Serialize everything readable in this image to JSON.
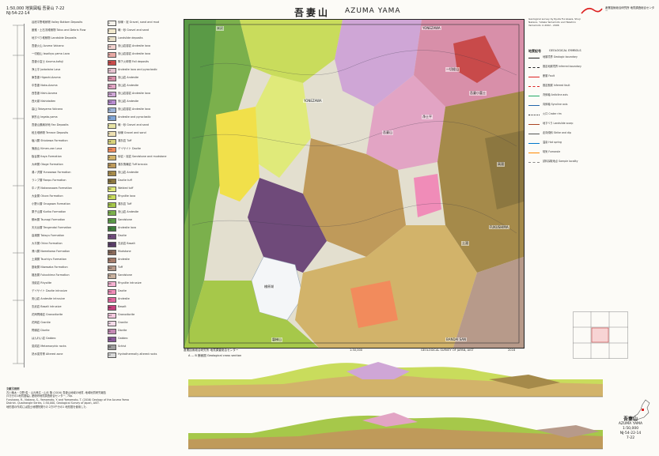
{
  "header": {
    "series_jp": "1:50,000 地質図幅 吾妻山 7-22",
    "sheet_code": "NJ-54-22-14",
    "title_jp": "吾妻山",
    "title_en": "AZUMA YAMA",
    "authors": "Geological survey by Ryuta Furukawa, Shuji Nakano, Yutaka Yamamoto and Takahiro Yamamoto in 2002 - 2006",
    "agency_logo_text": "産業技術総合研究所 地質調査総合センター"
  },
  "legend": {
    "rows": [
      {
        "name": "谷底平野堆積物 Valley Bottom Deposits",
        "color": "#f4f1ea",
        "code": "a",
        "desc": "砂礫・泥 Gravel, sand and mud"
      },
      {
        "name": "崖錐・土石流堆積物 Talus and Debris Flow",
        "color": "#f1e8cc",
        "code": "t",
        "desc": "礫・砂 Gravel and sand"
      },
      {
        "name": "地すべり堆積物 Landslide Deposits",
        "color": "#e8e0c8",
        "code": "ls",
        "desc": "Landslide deposits"
      },
      {
        "name": "吾妻火山 Azuma Volcano",
        "color": "#f3d3cf",
        "code": "Az",
        "desc": "安山岩溶岩 Andesite lava"
      },
      {
        "name": "一切経山 Issaikyo-yama Lava",
        "color": "#e8a9a4",
        "code": "Is",
        "desc": "安山岩溶岩 Andesite lava"
      },
      {
        "name": "吾妻小富士 Azuma-kofuji",
        "color": "#c84a4a",
        "code": "Ak",
        "desc": "降下火砕物 Fall deposits"
      },
      {
        "name": "浄土平 Jododaira Lava",
        "color": "#e6c2cf",
        "code": "Jd",
        "desc": "Andesite lava and pyroclastic"
      },
      {
        "name": "東吾妻 Higashi-Azuma",
        "color": "#d88fa9",
        "code": "Ha",
        "desc": "安山岩 Andesite"
      },
      {
        "name": "中吾妻 Naka-Azuma",
        "color": "#e2a4c4",
        "code": "Na",
        "desc": "安山岩 Andesite"
      },
      {
        "name": "西吾妻 Nishi-Azuma",
        "color": "#cfa6d6",
        "code": "Wa",
        "desc": "安山岩溶岩 Andesite lava"
      },
      {
        "name": "西大巓 Nishidaiten",
        "color": "#b88bd0",
        "code": "Nd",
        "desc": "安山岩 Andesite"
      },
      {
        "name": "高山 Takayama Volcano",
        "color": "#9fb6d8",
        "code": "Ty",
        "desc": "安山岩溶岩 Andesite lava"
      },
      {
        "name": "家形山 Iegata-yama",
        "color": "#7fa5d6",
        "code": "Ig",
        "desc": "Andesite and pyroclastic"
      },
      {
        "name": "吾妻山麓扇状地 Fan Deposits",
        "color": "#e7e3a5",
        "code": "f",
        "desc": "礫・砂 Gravel and sand"
      },
      {
        "name": "段丘堆積物 Terrace Deposits",
        "color": "#eee1b4",
        "code": "tr",
        "desc": "砂礫 Gravel and sand"
      },
      {
        "name": "塩川層 Shiokawa Formation",
        "color": "#d7d27a",
        "code": "Sk",
        "desc": "凝灰岩 Tuff"
      },
      {
        "name": "鬼面山 Kimen-zan Lava",
        "color": "#f28b5c",
        "code": "Km",
        "desc": "デイサイト Dacite"
      },
      {
        "name": "板谷層 Itaya Formation",
        "color": "#d2b36a",
        "code": "It",
        "desc": "砂岩・泥岩 Sandstone and mudstone"
      },
      {
        "name": "大峠層 Otoge Formation",
        "color": "#bf9a5a",
        "code": "Ot",
        "desc": "凝灰角礫岩 Tuff breccia"
      },
      {
        "name": "湯ノ沢層 Yunosawa Formation",
        "color": "#a58a4a",
        "code": "Yn",
        "desc": "安山岩 Andesite"
      },
      {
        "name": "ランプ層 Ranpu Formation",
        "color": "#8c7740",
        "code": "Rp",
        "desc": "Dacite tuff"
      },
      {
        "name": "中ノ沢 Nakanosawa Formation",
        "color": "#e0ea7a",
        "code": "Nk",
        "desc": "Welded tuff"
      },
      {
        "name": "大倉層 Okura Formation",
        "color": "#c9dc5c",
        "code": "Ok",
        "desc": "Rhyolite lava"
      },
      {
        "name": "小野川層 Onogawa Formation",
        "color": "#a6c84a",
        "code": "On",
        "desc": "凝灰岩 Tuff"
      },
      {
        "name": "栗子山層 Kuriko Formation",
        "color": "#7bb04c",
        "code": "Kr",
        "desc": "安山岩 Andesite"
      },
      {
        "name": "綱木層 Tsunagi Formation",
        "color": "#5a9a46",
        "code": "Tn",
        "desc": "Sandstone"
      },
      {
        "name": "天元台層 Tengendai Formation",
        "color": "#3f7f3c",
        "code": "Tg",
        "desc": "Andesite lava"
      },
      {
        "name": "高湯層 Takayu Formation",
        "color": "#6f4a7a",
        "code": "Tk",
        "desc": "Dacite"
      },
      {
        "name": "大平層 Ohira Formation",
        "color": "#5a3d68",
        "code": "Oh",
        "desc": "玄武岩 Basalt"
      },
      {
        "name": "滑川層 Namekawa Formation",
        "color": "#8a6a5a",
        "code": "Nm",
        "desc": "Mudstone"
      },
      {
        "name": "土湯層 Tsuchiyu Formation",
        "color": "#a67c6a",
        "code": "Ts",
        "desc": "Andesite"
      },
      {
        "name": "庭坂層 Niwasaka Formation",
        "color": "#b79a8a",
        "code": "Nw",
        "desc": "Tuff"
      },
      {
        "name": "福島層 Fukushima Formation",
        "color": "#c9b19e",
        "code": "Fk",
        "desc": "Sandstone"
      },
      {
        "name": "流紋岩 Rhyolite",
        "color": "#f6b2d2",
        "code": "Rh",
        "desc": "Rhyolite intrusive"
      },
      {
        "name": "デイサイト Dacite intrusive",
        "color": "#f08cb8",
        "code": "Da",
        "desc": "Dacite"
      },
      {
        "name": "安山岩 Andesite intrusive",
        "color": "#e3679f",
        "code": "An",
        "desc": "Andesite"
      },
      {
        "name": "玄武岩 Basalt intrusive",
        "color": "#c6407d",
        "code": "Ba",
        "desc": "Basalt"
      },
      {
        "name": "花崗閃緑岩 Granodiorite",
        "color": "#f7c9e0",
        "code": "Gd",
        "desc": "Granodiorite"
      },
      {
        "name": "花崗岩 Granite",
        "color": "#f4dbe9",
        "code": "Gr",
        "desc": "Granite"
      },
      {
        "name": "閃緑岩 Diorite",
        "color": "#c58ab5",
        "code": "Di",
        "desc": "Diorite"
      },
      {
        "name": "はんれい岩 Gabbro",
        "color": "#8a5a9a",
        "code": "Gb",
        "desc": "Gabbro"
      },
      {
        "name": "変成岩 Metamorphic rocks",
        "color": "#9c9c9c",
        "code": "Mt",
        "desc": "Schist"
      },
      {
        "name": "熱水変質帯 Altered zone",
        "color": "#d8d8d8",
        "code": "Al",
        "desc": "Hydrothermally altered rocks"
      }
    ]
  },
  "map": {
    "north_label_left": "米沢",
    "north_label_right": "YONEZAWA",
    "south_label_left": "磐梯山",
    "south_label_right": "BANDAI SAN",
    "places": [
      "YONEZAWA",
      "吾妻山",
      "一切経山",
      "吾妻小富士",
      "浄土平",
      "土湯",
      "FUKUSHIMA",
      "檜原湖",
      "高湯"
    ]
  },
  "symbols": {
    "heading_jp": "地質記号",
    "heading_en": "GEOLOGICAL SYMBOLS",
    "rows": [
      {
        "color": "#222",
        "style": "solid",
        "label": "地層境界 Geologic boundary"
      },
      {
        "color": "#222",
        "style": "dashed",
        "label": "推定地層境界 Inferred boundary"
      },
      {
        "color": "#d22",
        "style": "solid",
        "label": "断層 Fault"
      },
      {
        "color": "#d22",
        "style": "dashed",
        "label": "推定断層 Inferred fault"
      },
      {
        "color": "#2a6",
        "style": "solid",
        "label": "背斜軸 Anticline axis"
      },
      {
        "color": "#26a",
        "style": "solid",
        "label": "向斜軸 Syncline axis"
      },
      {
        "color": "#222",
        "style": "dotted",
        "label": "火口 Crater rim"
      },
      {
        "color": "#a42",
        "style": "solid",
        "label": "地すべり Landslide scarp"
      },
      {
        "color": "#555",
        "style": "solid",
        "label": "走向傾斜 Strike and dip"
      },
      {
        "color": "#07c",
        "style": "solid",
        "label": "温泉 Hot spring"
      },
      {
        "color": "#f80",
        "style": "solid",
        "label": "噴気 Fumarole"
      },
      {
        "color": "#888",
        "style": "dashed",
        "label": "試料採取地点 Sample locality"
      }
    ]
  },
  "footer": {
    "scale": "1:50,000",
    "org_jp": "産業技術総合研究所 地質調査総合センター",
    "org_en": "GEOLOGICAL SURVEY OF JAPAN, AIST",
    "year": "2016",
    "sheet_title_jp": "吾妻山",
    "sheet_title_en": "AZUMA YAMA",
    "sheet_no": "NJ-54-22-14",
    "sheet_no2": "7-22",
    "section_label": "A — B 断面図 Geological cross section"
  },
  "notes": {
    "heading": "文献引用例",
    "lines": [
      "古川竜太・中野 俊・山元孝広・山元 隆 (2016) 吾妻山地域の地質. 地域地質研究報告",
      "(5万分の1地質図幅), 産総研地質調査総合センター, 70p.",
      "Furukawa, R., Nakano, S., Yamamoto, Y. and Yamamoto, T. (2016) Geology of the Azuma Yama",
      "District. Quadrangle Series, 1:50,000, Geological Survey of Japan, AIST.",
      "地形図の作成には国土地理院発行の 2万5千分の1 地形図を使用した."
    ]
  }
}
